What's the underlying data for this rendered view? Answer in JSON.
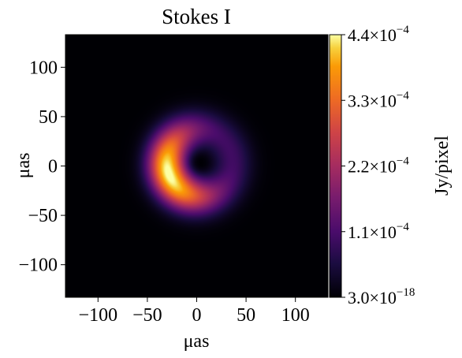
{
  "chart_data": {
    "type": "heatmap",
    "title": "Stokes I",
    "xlabel": "μas",
    "ylabel": "μas",
    "xlim": [
      -133,
      133
    ],
    "ylim": [
      -133,
      133
    ],
    "x_ticks": [
      -100,
      -50,
      0,
      50,
      100
    ],
    "y_ticks": [
      -100,
      -50,
      0,
      50,
      100
    ],
    "x_tick_labels": [
      "−100",
      "−50",
      "0",
      "50",
      "100"
    ],
    "y_tick_labels": [
      "−100",
      "−50",
      "0",
      "50",
      "100"
    ],
    "colormap": "inferno",
    "colorbar": {
      "label": "Jy/pixel",
      "min": 3e-18,
      "max": 0.00044,
      "ticks": [
        3e-18,
        0.00011,
        0.00022,
        0.00033,
        0.00044
      ],
      "tick_labels": [
        {
          "mantissa": "3.0×10",
          "exponent": "−18"
        },
        {
          "mantissa": "1.1×10",
          "exponent": "−4"
        },
        {
          "mantissa": "2.2×10",
          "exponent": "−4"
        },
        {
          "mantissa": "3.3×10",
          "exponent": "−4"
        },
        {
          "mantissa": "4.4×10",
          "exponent": "−4"
        }
      ]
    },
    "image": {
      "description_free": true,
      "ring_center": [
        3,
        3
      ],
      "ring_radius": 33,
      "ring_width": 19,
      "brightness_peak_position_angle_deg": 200,
      "inner_hole_radius": 9
    }
  }
}
